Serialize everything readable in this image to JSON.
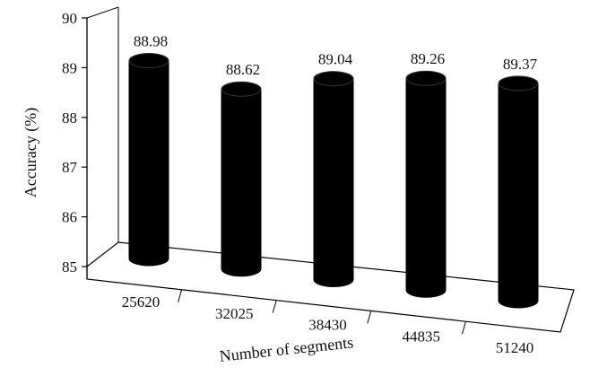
{
  "chart_data": {
    "type": "bar",
    "style": "3d-cylinder",
    "categories": [
      "25620",
      "32025",
      "38430",
      "44835",
      "51240"
    ],
    "values": [
      88.98,
      88.62,
      89.04,
      89.26,
      89.37
    ],
    "data_labels": [
      "88.98",
      "88.62",
      "89.04",
      "89.26",
      "89.37"
    ],
    "title": "",
    "xlabel": "Number of segments",
    "ylabel": "Accuracy (%)",
    "ylim": [
      85,
      90
    ],
    "yticks": [
      "85",
      "86",
      "87",
      "88",
      "89",
      "90"
    ],
    "grid": false,
    "legend": "none",
    "bar_color": "#000000"
  }
}
